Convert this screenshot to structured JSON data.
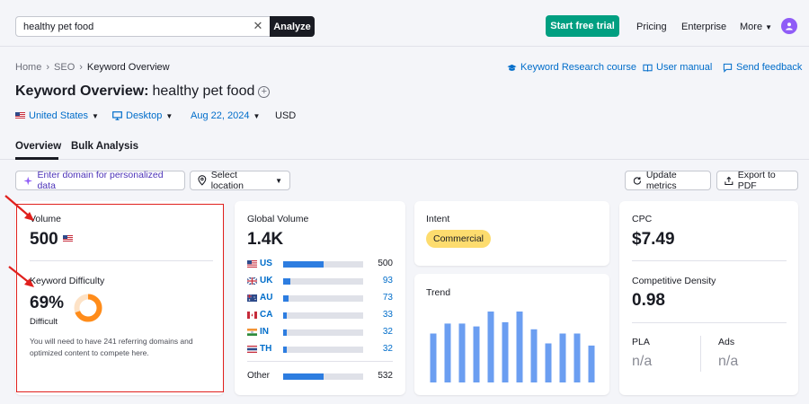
{
  "topbar": {
    "search_value": "healthy pet food",
    "analyze_label": "Analyze",
    "trial_label": "Start free trial",
    "nav": [
      "Pricing",
      "Enterprise",
      "More"
    ]
  },
  "breadcrumb": [
    "Home",
    "SEO",
    "Keyword Overview"
  ],
  "header_links": [
    "Keyword Research course",
    "User manual",
    "Send feedback"
  ],
  "title": {
    "prefix": "Keyword Overview:",
    "keyword": "healthy pet food"
  },
  "filters": {
    "country": "United States",
    "device": "Desktop",
    "date": "Aug 22, 2024",
    "currency": "USD"
  },
  "tabs": [
    "Overview",
    "Bulk Analysis"
  ],
  "actions": {
    "domain_placeholder": "Enter domain for personalized data",
    "location": "Select location",
    "update": "Update metrics",
    "export": "Export to PDF"
  },
  "volume": {
    "label": "Volume",
    "value": "500"
  },
  "kd": {
    "label": "Keyword Difficulty",
    "value": "69%",
    "level": "Difficult",
    "percent": 69,
    "description": "You will need to have 241 referring domains and optimized content to compete here."
  },
  "global_volume": {
    "label": "Global Volume",
    "value": "1.4K",
    "rows": [
      {
        "code": "US",
        "value": "500",
        "fraction": 0.5
      },
      {
        "code": "UK",
        "value": "93",
        "fraction": 0.09
      },
      {
        "code": "AU",
        "value": "73",
        "fraction": 0.07
      },
      {
        "code": "CA",
        "value": "33",
        "fraction": 0.03
      },
      {
        "code": "IN",
        "value": "32",
        "fraction": 0.03
      },
      {
        "code": "TH",
        "value": "32",
        "fraction": 0.03
      }
    ],
    "other": {
      "label": "Other",
      "value": "532",
      "fraction": 0.5
    }
  },
  "intent": {
    "label": "Intent",
    "value": "Commercial"
  },
  "trend": {
    "label": "Trend",
    "values": [
      0.69,
      0.83,
      0.83,
      0.79,
      1.0,
      0.85,
      1.0,
      0.75,
      0.55,
      0.69,
      0.69,
      0.52
    ]
  },
  "cpc": {
    "label": "CPC",
    "value": "$7.49"
  },
  "competitive_density": {
    "label": "Competitive Density",
    "value": "0.98"
  },
  "pla": {
    "label": "PLA",
    "value": "n/a"
  },
  "ads": {
    "label": "Ads",
    "value": "n/a"
  },
  "colors": {
    "accent": "#006dca",
    "trial": "#009f81",
    "kd": "#ff8c1a",
    "trend_bar": "#6b9ef1",
    "annotation": "#e0201d"
  }
}
